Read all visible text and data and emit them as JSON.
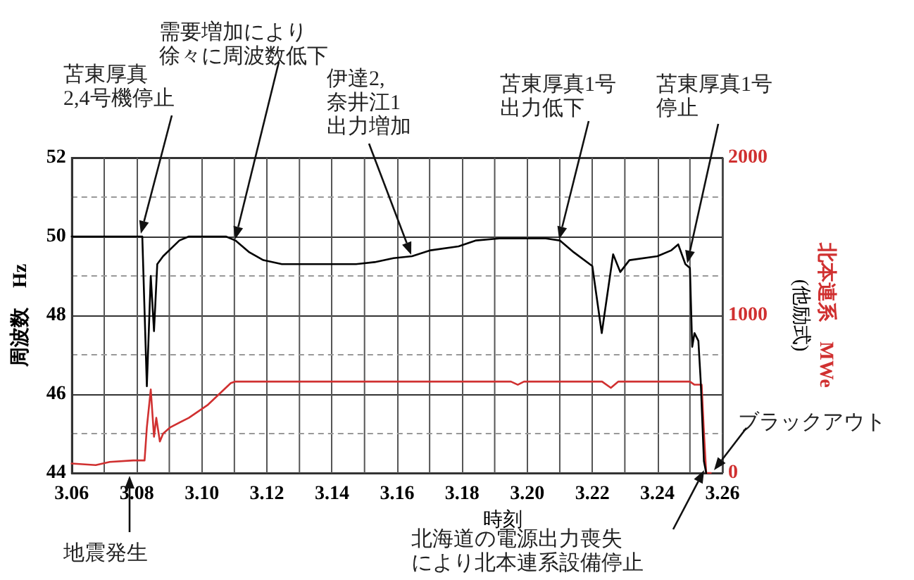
{
  "chart_data": {
    "type": "line",
    "xlabel": "時刻",
    "ylabel": "周波数　Hz",
    "y2label": "北本連系　MWe\n(他励式)",
    "xlim": [
      3.06,
      3.26
    ],
    "xticks": [
      {
        "value": 3.06,
        "label": "3.06"
      },
      {
        "value": 3.07,
        "label": null
      },
      {
        "value": 3.08,
        "label": "3.08"
      },
      {
        "value": 3.09,
        "label": null
      },
      {
        "value": 3.1,
        "label": "3.10"
      },
      {
        "value": 3.11,
        "label": null
      },
      {
        "value": 3.12,
        "label": "3.12"
      },
      {
        "value": 3.13,
        "label": null
      },
      {
        "value": 3.14,
        "label": "3.14"
      },
      {
        "value": 3.15,
        "label": null
      },
      {
        "value": 3.16,
        "label": "3.16"
      },
      {
        "value": 3.17,
        "label": null
      },
      {
        "value": 3.18,
        "label": "3.18"
      },
      {
        "value": 3.19,
        "label": null
      },
      {
        "value": 3.2,
        "label": "3.20"
      },
      {
        "value": 3.21,
        "label": null
      },
      {
        "value": 3.22,
        "label": "3.22"
      },
      {
        "value": 3.23,
        "label": null
      },
      {
        "value": 3.24,
        "label": "3.24"
      },
      {
        "value": 3.25,
        "label": null
      },
      {
        "value": 3.26,
        "label": "3.26"
      }
    ],
    "ylim": [
      44,
      52
    ],
    "yticks": [
      44,
      {
        "value": 45,
        "label": null
      },
      46,
      {
        "value": 47,
        "label": null
      },
      48,
      {
        "value": 49,
        "label": null
      },
      50,
      {
        "value": 51,
        "label": null
      },
      52
    ],
    "y2lim": [
      0,
      2000
    ],
    "y2ticks": [
      0,
      1000,
      2000
    ],
    "grid": true,
    "marker": "none",
    "line_style": "solid",
    "series": [
      {
        "color": "#000000",
        "x": [
          3.06,
          3.07,
          3.08,
          3.0817,
          3.0831,
          3.0843,
          3.0853,
          3.0863,
          3.0881,
          3.0931,
          3.096,
          3.1074,
          3.1103,
          3.1146,
          3.1189,
          3.1246,
          3.1389,
          3.1474,
          3.1531,
          3.1589,
          3.1646,
          3.1703,
          3.1789,
          3.1843,
          3.1914,
          3.2057,
          3.21,
          3.2143,
          3.22,
          3.2229,
          3.2264,
          3.2286,
          3.2314,
          3.24,
          3.2443,
          3.2464,
          3.2486,
          3.25,
          3.2507,
          3.2514,
          3.2526,
          3.2533,
          3.2543,
          3.255
        ],
        "values": [
          50,
          50,
          50,
          50,
          46.2,
          49.0,
          47.6,
          49.3,
          49.5,
          49.9,
          50,
          50,
          49.9,
          49.6,
          49.4,
          49.3,
          49.3,
          49.3,
          49.35,
          49.45,
          49.5,
          49.65,
          49.75,
          49.9,
          49.95,
          49.95,
          49.9,
          49.6,
          49.25,
          47.55,
          49.55,
          49.1,
          49.4,
          49.5,
          49.65,
          49.8,
          49.3,
          49.2,
          47.2,
          47.55,
          47.35,
          46.35,
          44.3,
          44
        ]
      },
      {
        "color": "#d03030",
        "axis": "y2",
        "x": [
          3.06,
          3.0674,
          3.0717,
          3.0789,
          3.0824,
          3.0831,
          3.0843,
          3.0853,
          3.086,
          3.0871,
          3.0881,
          3.0903,
          3.096,
          3.1017,
          3.1089,
          3.1103,
          3.195,
          3.1971,
          3.199,
          3.223,
          3.2257,
          3.228,
          3.25,
          3.2514,
          3.2536,
          3.2543,
          3.255,
          3.2564
        ],
        "values": [
          60,
          50,
          70,
          80,
          80,
          290,
          530,
          230,
          350,
          200,
          250,
          290,
          350,
          430,
          570,
          580,
          580,
          560,
          580,
          580,
          540,
          580,
          580,
          560,
          560,
          260,
          0,
          0
        ]
      }
    ],
    "annotations": [
      "苫東厚真2,4号機停止",
      "需要増加により徐々に周波数低下",
      "伊達2,奈井江1出力増加",
      "苫東厚真1号出力低下",
      "苫東厚真1号停止",
      "ブラックアウト",
      "地震発生",
      "北海道の電源出力喪失により北本連系設備停止"
    ]
  }
}
